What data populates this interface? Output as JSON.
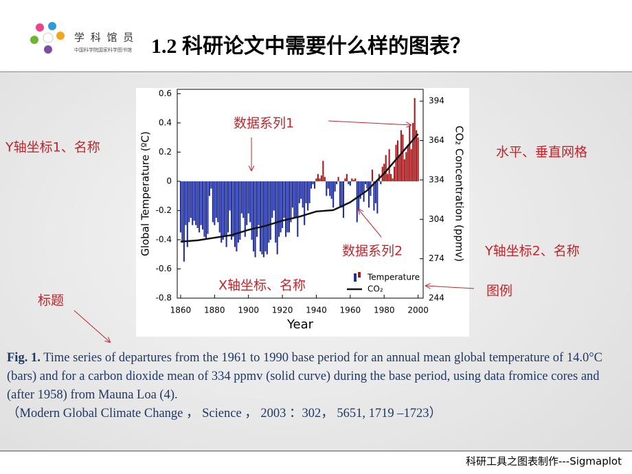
{
  "header": {
    "title": "1.2 科研论文中需要什么样的图表？",
    "logo_name": "学 科 馆 员",
    "logo_org": "中国科学院国家科学图书馆"
  },
  "chart_data": {
    "type": "bar",
    "y_label": "Global Temperature (ºC)",
    "y2_label": "CO₂ Concentration (ppmv)",
    "x_label": "Year",
    "xlim": [
      1858,
      2003
    ],
    "xticks": [
      1860,
      1880,
      1900,
      1920,
      1940,
      1960,
      1980,
      2000
    ],
    "ylim": [
      -0.8,
      0.63
    ],
    "yticks": [
      -0.8,
      -0.6,
      -0.4,
      -0.2,
      0,
      0.2,
      0.4,
      0.6
    ],
    "y2lim": [
      244,
      403
    ],
    "y2ticks": [
      244,
      274,
      304,
      334,
      364,
      394
    ],
    "grid": false,
    "series": [
      {
        "name": "Temperature",
        "colors": {
          "below_zero": "#1f2fa0",
          "above_zero": "#a8191c"
        },
        "x": [
          1860,
          1861,
          1862,
          1863,
          1864,
          1865,
          1866,
          1867,
          1868,
          1869,
          1870,
          1871,
          1872,
          1873,
          1874,
          1875,
          1876,
          1877,
          1878,
          1879,
          1880,
          1881,
          1882,
          1883,
          1884,
          1885,
          1886,
          1887,
          1888,
          1889,
          1890,
          1891,
          1892,
          1893,
          1894,
          1895,
          1896,
          1897,
          1898,
          1899,
          1900,
          1901,
          1902,
          1903,
          1904,
          1905,
          1906,
          1907,
          1908,
          1909,
          1910,
          1911,
          1912,
          1913,
          1914,
          1915,
          1916,
          1917,
          1918,
          1919,
          1920,
          1921,
          1922,
          1923,
          1924,
          1925,
          1926,
          1927,
          1928,
          1929,
          1930,
          1931,
          1932,
          1933,
          1934,
          1935,
          1936,
          1937,
          1938,
          1939,
          1940,
          1941,
          1942,
          1943,
          1944,
          1945,
          1946,
          1947,
          1948,
          1949,
          1950,
          1951,
          1952,
          1953,
          1954,
          1955,
          1956,
          1957,
          1958,
          1959,
          1960,
          1961,
          1962,
          1963,
          1964,
          1965,
          1966,
          1967,
          1968,
          1969,
          1970,
          1971,
          1972,
          1973,
          1974,
          1975,
          1976,
          1977,
          1978,
          1979,
          1980,
          1981,
          1982,
          1983,
          1984,
          1985,
          1986,
          1987,
          1988,
          1989,
          1990,
          1991,
          1992,
          1993,
          1994,
          1995,
          1996,
          1997,
          1998,
          1999,
          2000
        ],
        "values": [
          -0.35,
          -0.42,
          -0.55,
          -0.3,
          -0.45,
          -0.28,
          -0.25,
          -0.3,
          -0.27,
          -0.3,
          -0.32,
          -0.35,
          -0.3,
          -0.33,
          -0.38,
          -0.4,
          -0.36,
          -0.1,
          -0.05,
          -0.28,
          -0.3,
          -0.25,
          -0.28,
          -0.35,
          -0.42,
          -0.4,
          -0.38,
          -0.45,
          -0.35,
          -0.2,
          -0.4,
          -0.38,
          -0.45,
          -0.48,
          -0.42,
          -0.4,
          -0.22,
          -0.25,
          -0.38,
          -0.3,
          -0.22,
          -0.28,
          -0.4,
          -0.48,
          -0.52,
          -0.38,
          -0.3,
          -0.48,
          -0.5,
          -0.52,
          -0.48,
          -0.5,
          -0.42,
          -0.4,
          -0.25,
          -0.2,
          -0.42,
          -0.5,
          -0.38,
          -0.35,
          -0.32,
          -0.25,
          -0.38,
          -0.35,
          -0.35,
          -0.28,
          -0.18,
          -0.25,
          -0.25,
          -0.38,
          -0.15,
          -0.12,
          -0.18,
          -0.3,
          -0.15,
          -0.2,
          -0.15,
          -0.05,
          -0.02,
          -0.05,
          0.02,
          0.05,
          0.02,
          0.04,
          0.14,
          0.03,
          -0.1,
          -0.05,
          -0.1,
          -0.12,
          -0.18,
          -0.07,
          -0.02,
          0.03,
          -0.17,
          -0.18,
          -0.25,
          0.02,
          0.05,
          -0.02,
          -0.03,
          0.02,
          0.01,
          0.02,
          -0.28,
          -0.2,
          -0.12,
          -0.08,
          -0.14,
          -0.02,
          -0.05,
          -0.18,
          -0.1,
          0.08,
          -0.2,
          -0.15,
          -0.22,
          0.05,
          -0.02,
          0.1,
          0.12,
          0.18,
          0.05,
          0.22,
          0.05,
          0.02,
          0.1,
          0.25,
          0.28,
          0.18,
          0.35,
          0.32,
          0.15,
          0.2,
          0.25,
          0.38,
          0.22,
          0.4,
          0.57,
          0.35,
          0.3
        ]
      },
      {
        "name": "CO₂",
        "color": "#111111",
        "axis": "y2",
        "x": [
          1860,
          1870,
          1880,
          1890,
          1900,
          1910,
          1920,
          1930,
          1940,
          1950,
          1960,
          1970,
          1980,
          1990,
          2000
        ],
        "values": [
          287,
          288,
          290,
          292,
          296,
          299,
          303,
          306,
          310,
          311,
          317,
          326,
          339,
          354,
          369
        ]
      }
    ]
  },
  "annotations": [
    "数据系列1",
    "Y轴坐标1、名称",
    "水平、垂直网格",
    "数据系列2",
    "Y轴坐标2、名称",
    "X轴坐标、名称",
    "图例",
    "标题"
  ],
  "caption": {
    "label": "Fig. 1.",
    "text": "Time series of departures from the 1961 to 1990 base period for an annual mean global temperature of 14.0°C (bars) and for a carbon dioxide mean of 334 ppmv (solid curve) during the base period, using data fromice cores and (after 1958) from Mauna Loa (4).",
    "citation": "（Modern Global Climate Change ， Science ， 2003 ：302， 5651, 1719 –1723）"
  },
  "footer": "科研工具之图表制作---Sigmaplot"
}
